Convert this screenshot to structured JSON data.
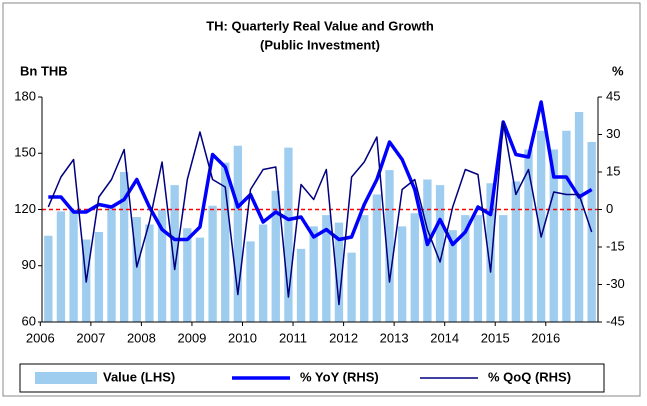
{
  "chart_data": {
    "type": "bar",
    "title": "TH: Quarterly Real Value and Growth",
    "subtitle": "(Public Investment)",
    "y_label": "Bn THB",
    "y2_label": "%",
    "categories": [
      "2006",
      null,
      null,
      null,
      "2007",
      null,
      null,
      null,
      "2008",
      null,
      null,
      null,
      "2009",
      null,
      null,
      null,
      "2010",
      null,
      null,
      null,
      "2011",
      null,
      null,
      null,
      "2012",
      null,
      null,
      null,
      "2013",
      null,
      null,
      null,
      "2014",
      null,
      null,
      null,
      "2015",
      null,
      null,
      null,
      "2016",
      null,
      null,
      null
    ],
    "series": [
      {
        "name": "Value (LHS)",
        "type": "bar",
        "color": "#9fcdf0",
        "axis": "y",
        "values": [
          106,
          119,
          120,
          104,
          108,
          122,
          140,
          116,
          112,
          120,
          133,
          110,
          105,
          122,
          145,
          154,
          103,
          112,
          130,
          153,
          99,
          111,
          117,
          113,
          97,
          117,
          128,
          141,
          111,
          118,
          136,
          133,
          109,
          117,
          117,
          134,
          117,
          135,
          152,
          162,
          152,
          162,
          172,
          156
        ]
      },
      {
        "name": "% YoY (RHS)",
        "type": "line",
        "color": "#0000ff",
        "width": 3.5,
        "axis": "y2",
        "values": [
          5,
          5,
          -1,
          -1,
          2,
          1,
          4,
          12,
          1,
          -8,
          -12,
          -12,
          -7,
          22,
          17,
          1,
          6,
          -5,
          -1,
          -4,
          -3,
          -11,
          -8,
          -12,
          -11,
          2,
          12,
          27,
          20,
          8,
          -14,
          -4,
          -14,
          -9,
          1,
          -2,
          35,
          22,
          21,
          43,
          13,
          13,
          5,
          8
        ]
      },
      {
        "name": "% QoQ (RHS)",
        "type": "line",
        "color": "#000080",
        "width": 1.5,
        "axis": "y2",
        "values": [
          1,
          13,
          20,
          -29,
          5,
          12,
          24,
          -23,
          -5,
          19,
          -24,
          12,
          31,
          12,
          9,
          -34,
          8,
          16,
          17,
          -35,
          10,
          4,
          16,
          -38,
          13,
          19,
          29,
          -29,
          8,
          12,
          -8,
          -21,
          1,
          16,
          14,
          -25,
          35,
          6,
          16,
          -11,
          7,
          6,
          6,
          -9
        ]
      }
    ],
    "ylim": [
      60,
      180
    ],
    "yticks": [
      60,
      90,
      120,
      150,
      180
    ],
    "y2lim": [
      -45,
      45
    ],
    "y2ticks": [
      -45,
      -30,
      -15,
      0,
      15,
      30,
      45
    ],
    "reference_line": {
      "value": 0,
      "axis": "y2",
      "color": "#ff0000"
    },
    "legend": "bottom"
  }
}
